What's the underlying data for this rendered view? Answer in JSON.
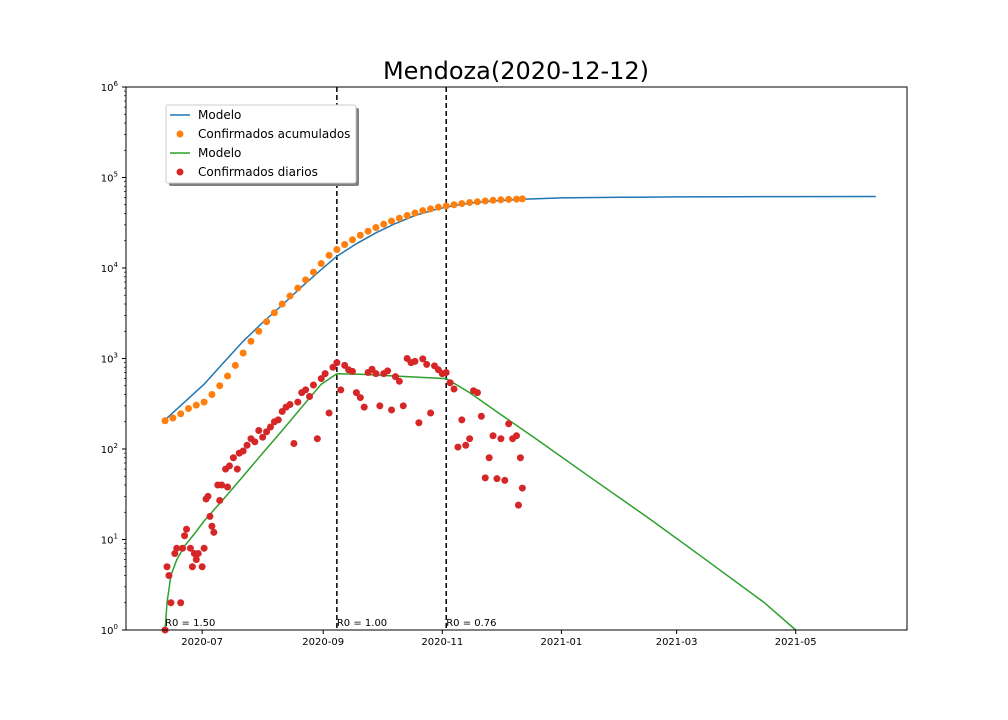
{
  "chart_data": {
    "type": "scatter",
    "title": "Mendoza(2020-12-12)",
    "xlabel": "",
    "ylabel": "",
    "yscale": "log",
    "ylim": [
      1,
      1000000
    ],
    "xlim": [
      "2020-05-23",
      "2021-06-27"
    ],
    "grid": false,
    "x_ticks": [
      "2020-07",
      "2020-09",
      "2020-11",
      "2021-01",
      "2021-03",
      "2021-05"
    ],
    "y_tick_labels": [
      "10^0",
      "10^1",
      "10^2",
      "10^3",
      "10^4",
      "10^5",
      "10^6"
    ],
    "legend_position": "top-left",
    "legend": [
      {
        "label": "Modelo",
        "marker": "line",
        "color": "#1f77b4"
      },
      {
        "label": "Confirmados acumulados",
        "marker": "dot",
        "color": "#ff7f0e"
      },
      {
        "label": "Modelo",
        "marker": "line",
        "color": "#2ca02c"
      },
      {
        "label": "Confirmados diarios",
        "marker": "dot",
        "color": "#d62728"
      }
    ],
    "vlines": [
      "2020-09-08",
      "2020-11-03"
    ],
    "annotations": [
      {
        "text": "R0 = 1.50",
        "x": "2020-06-12",
        "y": 1
      },
      {
        "text": "R0 = 1.00",
        "x": "2020-09-08",
        "y": 1
      },
      {
        "text": "R0 = 0.76",
        "x": "2020-11-03",
        "y": 1
      }
    ],
    "series": [
      {
        "name": "Modelo",
        "kind": "line",
        "color": "#1f77b4",
        "x": [
          "2020-06-12",
          "2020-06-22",
          "2020-07-02",
          "2020-07-12",
          "2020-07-22",
          "2020-08-01",
          "2020-08-11",
          "2020-08-21",
          "2020-08-31",
          "2020-09-08",
          "2020-09-18",
          "2020-09-28",
          "2020-10-08",
          "2020-10-18",
          "2020-10-28",
          "2020-11-07",
          "2020-11-17",
          "2020-11-27",
          "2020-12-12",
          "2021-01-01",
          "2021-02-01",
          "2021-03-01",
          "2021-04-01",
          "2021-05-01",
          "2021-06-11"
        ],
        "y": [
          210,
          330,
          520,
          900,
          1550,
          2500,
          3900,
          6200,
          9600,
          13500,
          18500,
          24500,
          31000,
          38000,
          44000,
          49000,
          52500,
          55000,
          57500,
          59500,
          60500,
          61000,
          61300,
          61500,
          61600
        ]
      },
      {
        "name": "Confirmados acumulados",
        "kind": "scatter",
        "color": "#ff7f0e",
        "x": [
          "2020-06-12",
          "2020-06-16",
          "2020-06-20",
          "2020-06-24",
          "2020-06-28",
          "2020-07-02",
          "2020-07-06",
          "2020-07-10",
          "2020-07-14",
          "2020-07-18",
          "2020-07-22",
          "2020-07-26",
          "2020-07-30",
          "2020-08-03",
          "2020-08-07",
          "2020-08-11",
          "2020-08-15",
          "2020-08-19",
          "2020-08-23",
          "2020-08-27",
          "2020-08-31",
          "2020-09-04",
          "2020-09-08",
          "2020-09-12",
          "2020-09-16",
          "2020-09-20",
          "2020-09-24",
          "2020-09-28",
          "2020-10-02",
          "2020-10-06",
          "2020-10-10",
          "2020-10-14",
          "2020-10-18",
          "2020-10-22",
          "2020-10-26",
          "2020-10-30",
          "2020-11-03",
          "2020-11-07",
          "2020-11-11",
          "2020-11-15",
          "2020-11-19",
          "2020-11-23",
          "2020-11-27",
          "2020-12-01",
          "2020-12-05",
          "2020-12-09",
          "2020-12-12"
        ],
        "y": [
          205,
          220,
          245,
          280,
          305,
          330,
          400,
          500,
          640,
          840,
          1150,
          1550,
          2000,
          2550,
          3200,
          4000,
          4900,
          6000,
          7400,
          9000,
          11200,
          13800,
          16000,
          18200,
          20500,
          23000,
          25500,
          28000,
          30500,
          33000,
          35500,
          38000,
          40500,
          43000,
          45000,
          47000,
          48500,
          50000,
          51500,
          53000,
          54000,
          55000,
          56000,
          56800,
          57300,
          57700,
          58000
        ]
      },
      {
        "name": "Modelo",
        "kind": "line",
        "color": "#2ca02c",
        "x": [
          "2020-06-12",
          "2020-06-13",
          "2020-06-15",
          "2020-06-18",
          "2020-06-22",
          "2020-06-27",
          "2020-07-02",
          "2020-07-12",
          "2020-07-22",
          "2020-08-01",
          "2020-08-11",
          "2020-08-21",
          "2020-08-31",
          "2020-09-08",
          "2020-09-20",
          "2020-10-01",
          "2020-10-15",
          "2020-11-03",
          "2020-11-15",
          "2020-12-01",
          "2020-12-20",
          "2021-01-15",
          "2021-02-15",
          "2021-03-15",
          "2021-04-15",
          "2021-05-01"
        ],
        "y": [
          1,
          2,
          4,
          6,
          8.5,
          11.5,
          16,
          28,
          50,
          90,
          160,
          290,
          520,
          680,
          670,
          650,
          630,
          600,
          420,
          240,
          125,
          50,
          17,
          6.2,
          2,
          1
        ]
      },
      {
        "name": "Confirmados diarios",
        "kind": "scatter",
        "color": "#d62728",
        "x": [
          "2020-06-12",
          "2020-06-13",
          "2020-06-14",
          "2020-06-15",
          "2020-06-17",
          "2020-06-18",
          "2020-06-20",
          "2020-06-21",
          "2020-06-22",
          "2020-06-23",
          "2020-06-25",
          "2020-06-26",
          "2020-06-27",
          "2020-06-28",
          "2020-06-29",
          "2020-07-01",
          "2020-07-02",
          "2020-07-03",
          "2020-07-04",
          "2020-07-05",
          "2020-07-06",
          "2020-07-07",
          "2020-07-09",
          "2020-07-10",
          "2020-07-11",
          "2020-07-13",
          "2020-07-14",
          "2020-07-15",
          "2020-07-17",
          "2020-07-19",
          "2020-07-20",
          "2020-07-22",
          "2020-07-24",
          "2020-07-26",
          "2020-07-28",
          "2020-07-30",
          "2020-08-01",
          "2020-08-03",
          "2020-08-05",
          "2020-08-07",
          "2020-08-09",
          "2020-08-11",
          "2020-08-13",
          "2020-08-15",
          "2020-08-17",
          "2020-08-19",
          "2020-08-21",
          "2020-08-23",
          "2020-08-25",
          "2020-08-27",
          "2020-08-29",
          "2020-08-31",
          "2020-09-02",
          "2020-09-04",
          "2020-09-06",
          "2020-09-08",
          "2020-09-10",
          "2020-09-12",
          "2020-09-14",
          "2020-09-16",
          "2020-09-18",
          "2020-09-20",
          "2020-09-22",
          "2020-09-24",
          "2020-09-26",
          "2020-09-28",
          "2020-09-30",
          "2020-10-02",
          "2020-10-04",
          "2020-10-06",
          "2020-10-08",
          "2020-10-10",
          "2020-10-12",
          "2020-10-14",
          "2020-10-16",
          "2020-10-18",
          "2020-10-20",
          "2020-10-22",
          "2020-10-24",
          "2020-10-26",
          "2020-10-28",
          "2020-10-30",
          "2020-11-01",
          "2020-11-03",
          "2020-11-05",
          "2020-11-07",
          "2020-11-09",
          "2020-11-11",
          "2020-11-13",
          "2020-11-15",
          "2020-11-17",
          "2020-11-19",
          "2020-11-21",
          "2020-11-23",
          "2020-11-25",
          "2020-11-27",
          "2020-11-29",
          "2020-12-01",
          "2020-12-03",
          "2020-12-05",
          "2020-12-07",
          "2020-12-09",
          "2020-12-10",
          "2020-12-11",
          "2020-12-12"
        ],
        "y": [
          1,
          5,
          4,
          2,
          7,
          8,
          2,
          8,
          11,
          13,
          8,
          5,
          7,
          6,
          7,
          5,
          8,
          28,
          30,
          18,
          14,
          12,
          40,
          27,
          40,
          60,
          38,
          65,
          80,
          60,
          90,
          95,
          110,
          130,
          120,
          160,
          135,
          155,
          175,
          200,
          210,
          260,
          290,
          310,
          115,
          330,
          420,
          450,
          380,
          510,
          130,
          600,
          680,
          250,
          800,
          900,
          450,
          840,
          750,
          720,
          420,
          370,
          290,
          700,
          760,
          680,
          300,
          680,
          730,
          270,
          630,
          560,
          300,
          1000,
          900,
          930,
          195,
          990,
          860,
          250,
          830,
          750,
          680,
          700,
          540,
          460,
          105,
          210,
          110,
          130,
          440,
          420,
          230,
          48,
          80,
          140,
          47,
          130,
          45,
          190,
          130,
          140,
          24,
          80,
          37
        ]
      }
    ]
  }
}
